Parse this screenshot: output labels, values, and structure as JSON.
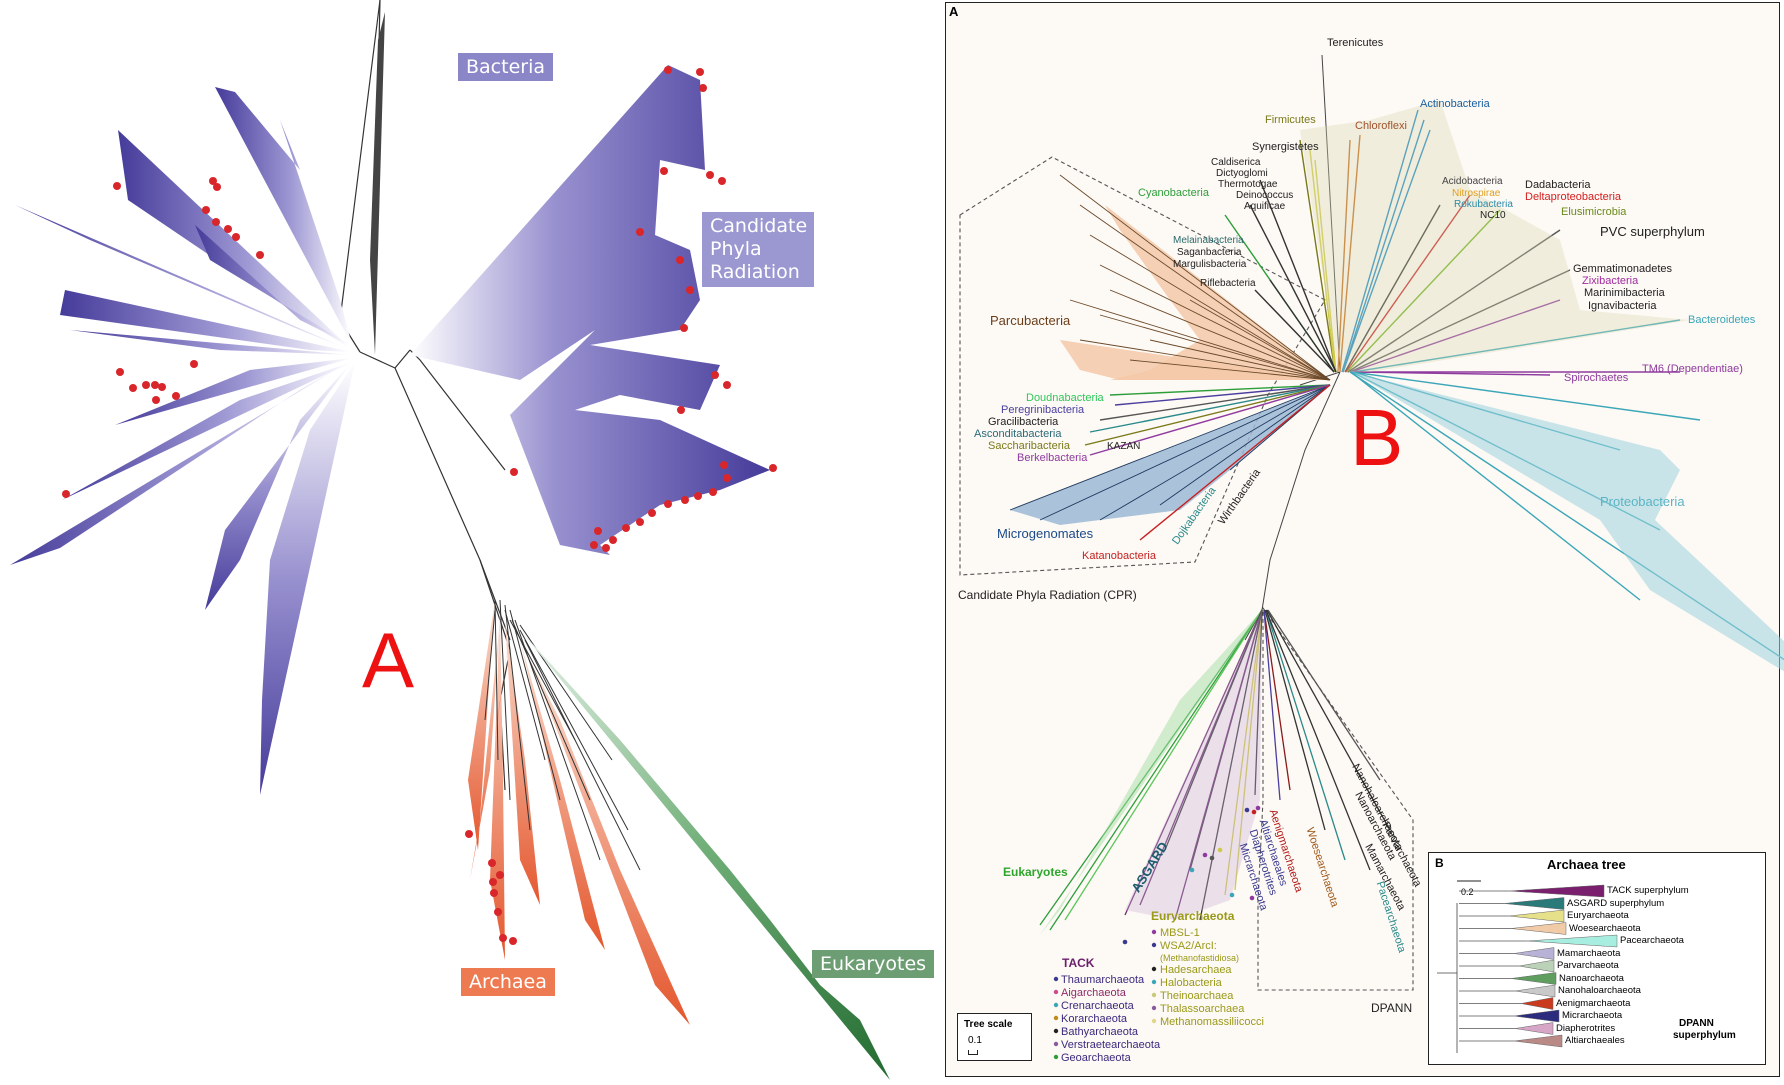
{
  "left_panel": {
    "letter": "A",
    "labels": {
      "bacteria": "Bacteria",
      "cpr": [
        "Candidate",
        "Phyla",
        "Radiation"
      ],
      "archaea": "Archaea",
      "eukaryotes": "Eukaryotes"
    },
    "colors": {
      "bacteria": "#4a3f9e",
      "cpr_label": "#9a97d1",
      "archaea": "#ea6a3e",
      "eukaryotes": "#2f7d3e",
      "dots": "#d9262a"
    }
  },
  "right_panel": {
    "panel_letter": "A",
    "overlay_letter": "B",
    "cpr_caption": "Candidate Phyla Radiation (CPR)",
    "dpann_caption": "DPANN",
    "scale": {
      "title": "Tree scale",
      "value": "0.1"
    },
    "bacteria_labels": {
      "terenicutes": "Terenicutes",
      "firmicutes": "Firmicutes",
      "chloroflexi": "Chloroflexi",
      "actinobacteria": "Actinobacteria",
      "synergistetes": "Synergistetes",
      "caldiserica": "Caldiserica",
      "dictyoglomi": "Dictyoglomi",
      "thermotogae": "Thermotogae",
      "deinococcus": "Deinococcus",
      "aquificae": "Aquificae",
      "cyanobacteria": "Cyanobacteria",
      "acidobacteria": "Acidobacteria",
      "nitrospirae": "Nitrospirae",
      "rokubacteria": "Rokubacteria",
      "nc10": "NC10",
      "dadabacteria": "Dadabacteria",
      "deltaproteobacteria": "Deltaproteobacteria",
      "elusimicrobia": "Elusimicrobia",
      "pvc": "PVC superphylum",
      "melainabacteria": "Melainabacteria",
      "saganbacteria": "Saganbacteria",
      "margulisbacteria": "Margulisbacteria",
      "riflebacteria": "Riflebacteria",
      "gemmatimonadetes": "Gemmatimonadetes",
      "zixibacteria": "Zixibacteria",
      "marinimibacteria": "Marinimibacteria",
      "ignavibacteria": "Ignavibacteria",
      "bacteroidetes": "Bacteroidetes",
      "tm6": "TM6 (Dependentiae)",
      "spirochaetes": "Spirochaetes",
      "proteobacteria": "Proteobacteria"
    },
    "cpr_labels": {
      "parcubacteria": "Parcubacteria",
      "doudnabacteria": "Doudnabacteria",
      "peregrinibacteria": "Peregrinibacteria",
      "gracilibacteria": "Gracilibacteria",
      "asconditabacteria": "Asconditabacteria",
      "saccharibacteria": "Saccharibacteria",
      "berkelbacteria": "Berkelbacteria",
      "kazan": "KAZAN",
      "microgenomates": "Microgenomates",
      "dojkabacteria": "Dojkabacteria",
      "wirthbacteria": "Wirthbacteria",
      "katanobacteria": "Katanobacteria"
    },
    "archaea_labels": {
      "eukaryotes": "Eukaryotes",
      "asgard": "ASGARD",
      "tack": "TACK",
      "tack_members": [
        "Thaumarchaeota",
        "Aigarchaeota",
        "Crenarchaeota",
        "Korarchaeota",
        "Bathyarchaeota",
        "Verstraetearchaeota",
        "Geoarchaeota"
      ],
      "euryarchaeota": "Euryarchaeota",
      "eury_members": [
        "MBSL-1",
        "WSA2/ArcI:",
        "(Methanofastidiosa)",
        "Hadesarchaea",
        "Halobacteria",
        "Theinoarchaea",
        "Thalassoarchaea",
        "Methanomassiliicocci"
      ],
      "aenigmarchaeota": "Aenigmarchaeota",
      "altiarchaeales": "Altiarchaeales",
      "diapherotrites": "Diapherotrites",
      "micrarchaeota": "Micrarchaeota",
      "woesearchaeota": "Woesearchaeota",
      "pacearchaeota": "Pacearchaeota",
      "mamarchaeota": "Mamarchaeota",
      "parvarchaeota": "Parvarchaeota",
      "nanoarchaeota": "Nanoarchaeota",
      "nanohaloarchaeota": "Nanohaloarchaeota"
    },
    "colors": {
      "green": "#2e9e3a",
      "olive": "#7a7a1a",
      "brown": "#a0522d",
      "blue": "#1a5fa0",
      "teal": "#2a8a8a",
      "purple": "#8e3a9e",
      "red": "#d42020",
      "cyan": "#3aa6b8",
      "cpr_fill": "#f3c9a8",
      "micro_fill": "#9cb9d6"
    }
  },
  "inset": {
    "letter": "B",
    "title": "Archaea tree",
    "scale": "0.2",
    "clades": [
      {
        "name": "TACK superphylum",
        "color": "#7a1e6e"
      },
      {
        "name": "ASGARD superphylum",
        "color": "#2a7a7a"
      },
      {
        "name": "Euryarchaeota",
        "color": "#e6e08a"
      },
      {
        "name": "Woesearchaeota",
        "color": "#f1cba8"
      },
      {
        "name": "Pacearchaeota",
        "color": "#a8eee0"
      },
      {
        "name": "Mamarchaeota",
        "color": "#b7b2d6"
      },
      {
        "name": "Parvarchaeota",
        "color": "#bcd2b8"
      },
      {
        "name": "Nanoarchaeota",
        "color": "#5f9e5f"
      },
      {
        "name": "Nanohaloarchaeota",
        "color": "#c9c9c9"
      },
      {
        "name": "Aenigmarchaeota",
        "color": "#c93a1e"
      },
      {
        "name": "Micrarchaeota",
        "color": "#2c2c7e"
      },
      {
        "name": "Diapherotrites",
        "color": "#d7a6c6"
      },
      {
        "name": "Altiarchaeales",
        "color": "#b98a86"
      }
    ],
    "dpann": [
      "DPANN",
      "superphylum"
    ]
  }
}
